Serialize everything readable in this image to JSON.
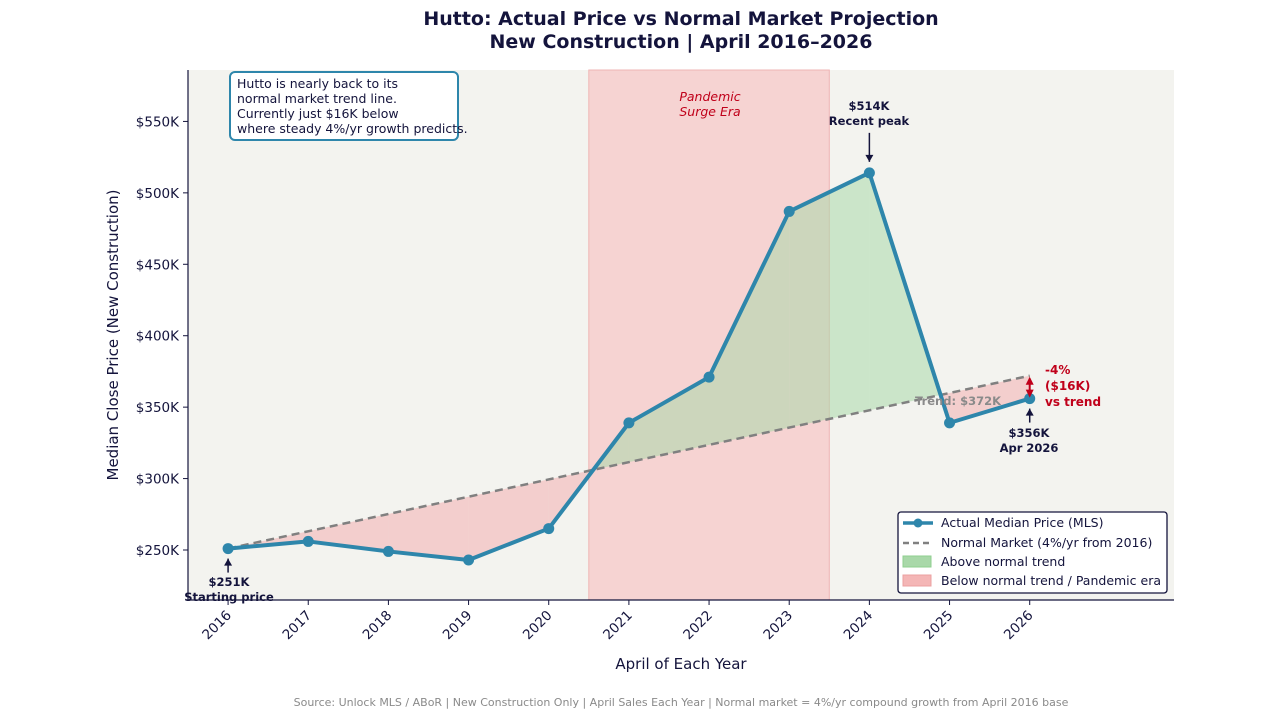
{
  "chart_data": {
    "type": "line",
    "title": "Hutto: Actual Price vs Normal Market Projection",
    "subtitle": "New Construction | April 2016–2026",
    "xlabel": "April of Each Year",
    "ylabel": "Median Close Price (New Construction)",
    "categories": [
      "2016",
      "2017",
      "2018",
      "2019",
      "2020",
      "2021",
      "2022",
      "2023",
      "2024",
      "2025",
      "2026"
    ],
    "y_ticks": [
      "$250K",
      "$300K",
      "$350K",
      "$400K",
      "$450K",
      "$500K",
      "$550K"
    ],
    "y_tick_values": [
      250000,
      300000,
      350000,
      400000,
      450000,
      500000,
      550000
    ],
    "ylim": [
      215000,
      586000
    ],
    "xlim": [
      2015.5,
      2027.8
    ],
    "series": [
      {
        "name": "Actual Median Price (MLS)",
        "x": [
          2016,
          2017,
          2018,
          2019,
          2020,
          2021,
          2022,
          2023,
          2024,
          2025,
          2026
        ],
        "values": [
          251000,
          256000,
          249000,
          243000,
          265000,
          339000,
          371000,
          487000,
          514000,
          339000,
          356000
        ],
        "color": "#2e86ab"
      },
      {
        "name": "Normal Market (4%/yr from 2016)",
        "x": [
          2016,
          2026
        ],
        "values": [
          251000,
          372000
        ],
        "color": "#808080"
      }
    ],
    "fill_legend": [
      {
        "name": "Above normal trend",
        "color": "#a9d8a9"
      },
      {
        "name": "Below normal trend / Pandemic era",
        "color": "#f4b6b6"
      }
    ],
    "pandemic_era": {
      "label_line1": "Pandemic",
      "label_line2": "Surge Era",
      "x_start": 2020.5,
      "x_end": 2023.5,
      "color": "#f6cccc"
    },
    "annotations": {
      "start": {
        "line1": "$251K",
        "line2": "Starting price"
      },
      "peak": {
        "line1": "$514K",
        "line2": "Recent peak"
      },
      "current": {
        "line1": "$356K",
        "line2": "Apr 2026"
      },
      "trend": "Trend: $372K",
      "diff": {
        "line1": "-4%",
        "line2": "($16K)",
        "line3": "vs trend"
      }
    },
    "info_box": [
      "Hutto is nearly back to its",
      "normal market trend line.",
      "Currently just $16K below",
      "where steady 4%/yr growth predicts."
    ],
    "source": "Source: Unlock MLS / ABoR  |  New Construction Only  |  April Sales Each Year  |  Normal market = 4%/yr compound growth from April 2016 base",
    "legend_position": "bottom-right",
    "grid": false
  }
}
